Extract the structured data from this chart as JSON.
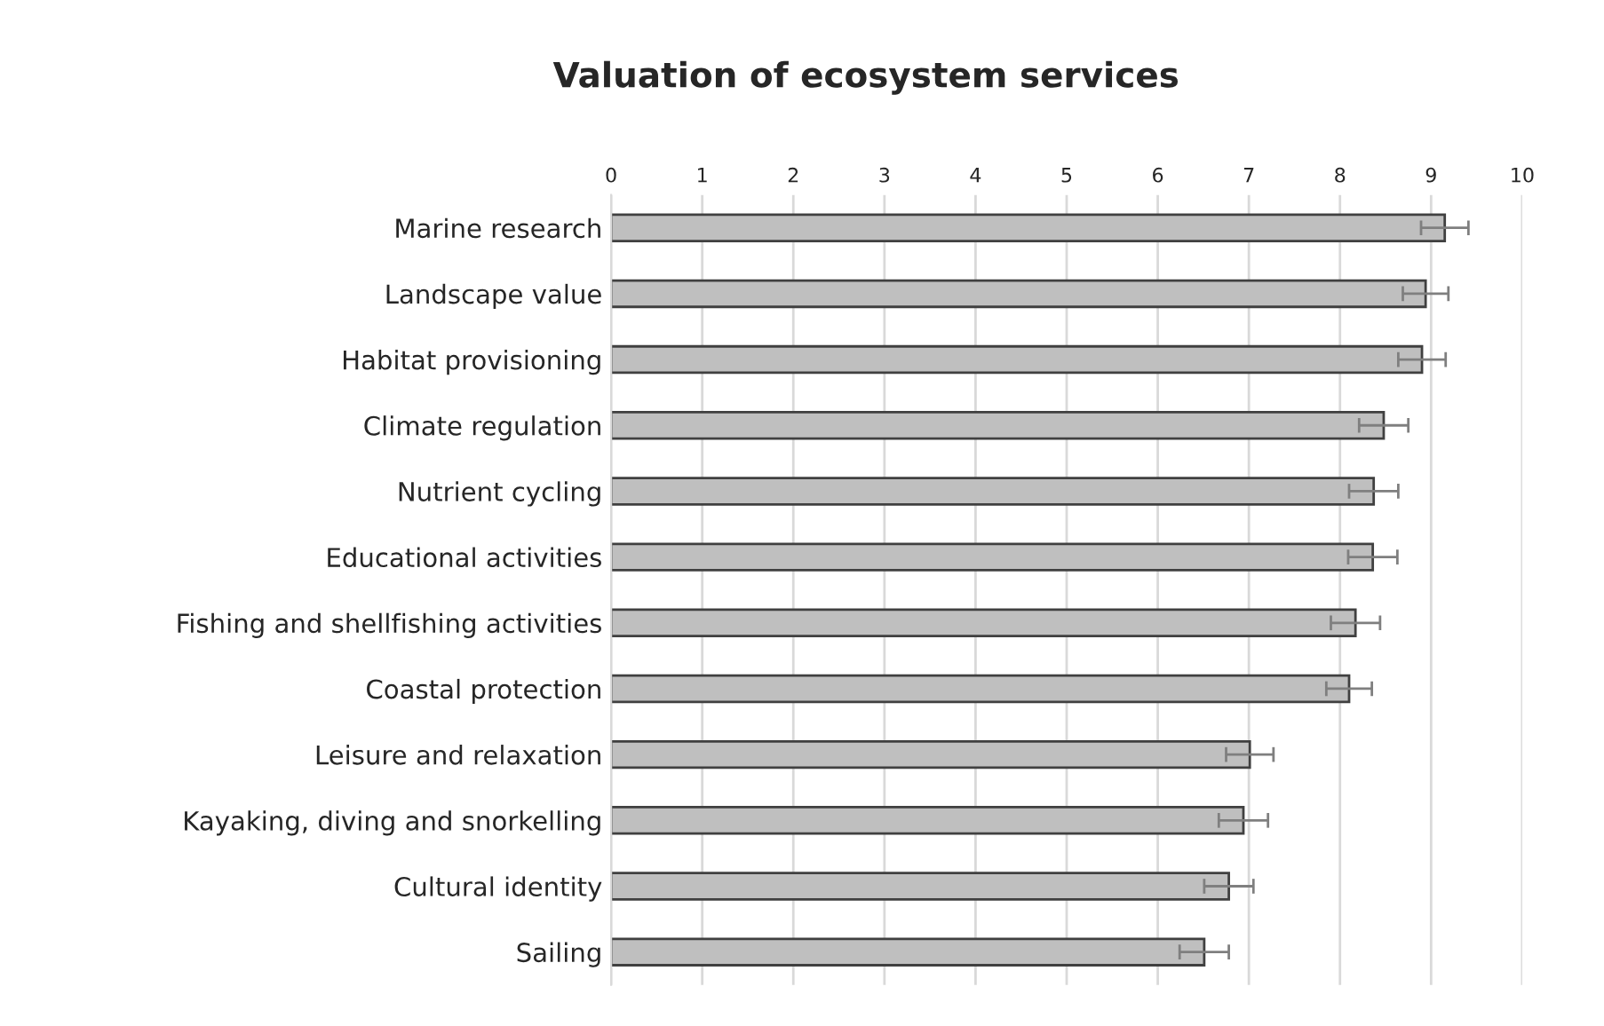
{
  "chart_data": {
    "type": "bar",
    "orientation": "horizontal",
    "title": "Valuation of ecosystem services",
    "categories": [
      "Marine research",
      "Landscape value",
      "Habitat provisioning",
      "Climate regulation",
      "Nutrient cycling",
      "Educational activities",
      "Fishing and shellfishing activities",
      "Coastal protection",
      "Leisure and relaxation",
      "Kayaking, diving and snorkelling",
      "Cultural identity",
      "Sailing"
    ],
    "values": [
      9.15,
      8.94,
      8.9,
      8.48,
      8.37,
      8.36,
      8.17,
      8.1,
      7.01,
      6.94,
      6.78,
      6.51
    ],
    "errors": [
      0.26,
      0.25,
      0.26,
      0.27,
      0.27,
      0.27,
      0.27,
      0.25,
      0.26,
      0.27,
      0.27,
      0.27
    ],
    "color": "#bfbfbf",
    "xlim": [
      0,
      10
    ],
    "xticks": [
      0,
      1,
      2,
      3,
      4,
      5,
      6,
      7,
      8,
      9,
      10
    ],
    "grid": "x"
  }
}
